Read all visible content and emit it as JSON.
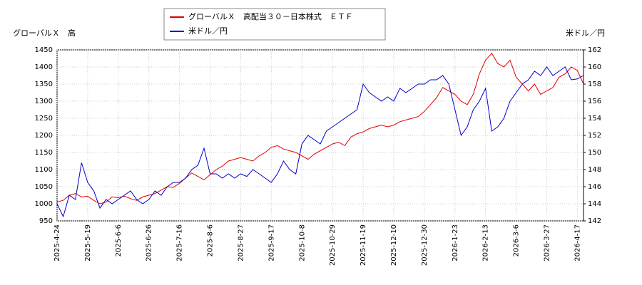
{
  "chart_data": {
    "type": "line",
    "y_label": "グローバルＸ　高",
    "y2_label": "米ドル／円",
    "categories": [
      "2025-4-24",
      null,
      null,
      null,
      null,
      "2025-5-19",
      null,
      null,
      null,
      null,
      "2025-6-6",
      null,
      null,
      null,
      null,
      "2025-6-26",
      null,
      null,
      null,
      null,
      "2025-7-16",
      null,
      null,
      null,
      null,
      "2025-8-6",
      null,
      null,
      null,
      null,
      "2025-8-27",
      null,
      null,
      null,
      null,
      "2025-9-17",
      null,
      null,
      null,
      null,
      "2025-10-8",
      null,
      null,
      null,
      null,
      "2025-10-29",
      null,
      null,
      null,
      null,
      "2025-11-19",
      null,
      null,
      null,
      null,
      "2025-12-10",
      null,
      null,
      null,
      null,
      "2025-12-30",
      null,
      null,
      null,
      null,
      "2026-1-23",
      null,
      null,
      null,
      null,
      "2026-2-13",
      null,
      null,
      null,
      null,
      "2026-3-6",
      null,
      null,
      null,
      null,
      "2026-3-27",
      null,
      null,
      null,
      null,
      "2026-4-17",
      null
    ],
    "series": [
      {
        "name": "グローバルＸ　高配当３０－日本株式　ＥＴＦ",
        "color": "#dd0000",
        "values": [
          1005,
          1010,
          1025,
          1030,
          1020,
          1022,
          1010,
          1000,
          1005,
          1020,
          1018,
          1022,
          1015,
          1010,
          1020,
          1025,
          1030,
          1040,
          1050,
          1048,
          1060,
          1075,
          1090,
          1080,
          1070,
          1085,
          1100,
          1110,
          1125,
          1130,
          1135,
          1130,
          1125,
          1140,
          1150,
          1165,
          1170,
          1160,
          1155,
          1150,
          1140,
          1130,
          1145,
          1155,
          1165,
          1175,
          1180,
          1170,
          1195,
          1205,
          1210,
          1220,
          1225,
          1230,
          1225,
          1230,
          1240,
          1245,
          1250,
          1255,
          1270,
          1290,
          1310,
          1340,
          1330,
          1320,
          1300,
          1290,
          1320,
          1380,
          1420,
          1440,
          1410,
          1400,
          1420,
          1370,
          1350,
          1330,
          1350,
          1320,
          1330,
          1340,
          1370,
          1380,
          1400,
          1390,
          1350
        ]
      },
      {
        "name": "米ドル／円",
        "color": "#0000cc",
        "axis": "y2",
        "values": [
          144,
          142.5,
          145,
          144.5,
          148.8,
          146.5,
          145.5,
          143.5,
          144.5,
          144,
          144.5,
          145,
          145.5,
          144.5,
          144,
          144.5,
          145.5,
          145,
          146,
          146.5,
          146.5,
          147,
          148,
          148.5,
          150.5,
          147.5,
          147.5,
          147,
          147.5,
          147,
          147.5,
          147.2,
          148,
          147.5,
          147,
          146.5,
          147.5,
          149,
          148,
          147.5,
          151,
          152,
          151.5,
          151,
          152.5,
          153,
          153.5,
          154,
          154.5,
          155,
          158,
          157,
          156.5,
          156,
          156.5,
          156,
          157.5,
          157,
          157.5,
          158,
          158,
          158.5,
          158.5,
          159,
          158,
          155,
          152,
          153,
          155,
          156,
          157.5,
          152.5,
          153,
          154,
          156,
          157,
          158,
          158.5,
          159.5,
          159,
          160,
          159,
          159.5,
          160,
          158.5,
          158.6,
          159
        ]
      }
    ],
    "ylim": [
      950,
      1450
    ],
    "yticks": [
      950,
      1000,
      1050,
      1100,
      1150,
      1200,
      1250,
      1300,
      1350,
      1400,
      1450
    ],
    "y2lim": [
      142,
      162
    ],
    "y2ticks": [
      142,
      144,
      146,
      148,
      150,
      152,
      154,
      156,
      158,
      160,
      162
    ],
    "grid": true
  }
}
